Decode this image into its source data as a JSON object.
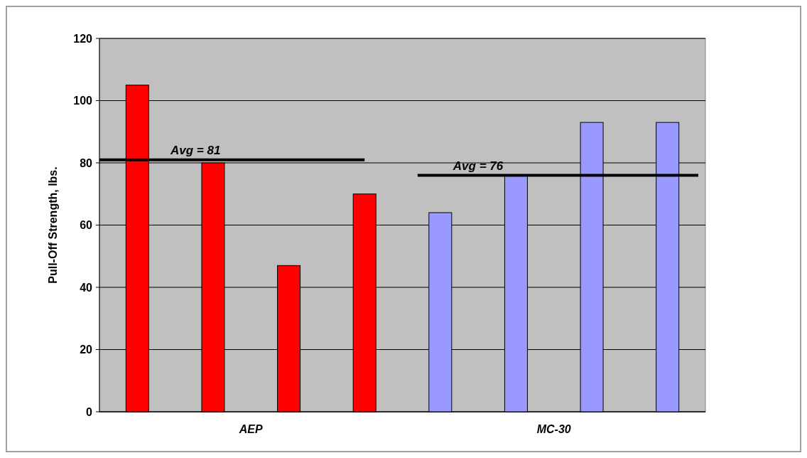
{
  "chart_data": {
    "type": "bar",
    "ylabel": "Pull-Off Strength, lbs.",
    "categories": [
      "AEP",
      "MC-30"
    ],
    "series": [
      {
        "colors": [
          "#ff0000",
          "#9999ff"
        ],
        "values": [
          105,
          64
        ]
      },
      {
        "colors": [
          "#ff0000",
          "#9999ff"
        ],
        "values": [
          80,
          76
        ]
      },
      {
        "colors": [
          "#ff0000",
          "#9999ff"
        ],
        "values": [
          47,
          93
        ]
      },
      {
        "colors": [
          "#ff0000",
          "#9999ff"
        ],
        "values": [
          70,
          93
        ]
      }
    ],
    "ylim": [
      0,
      120
    ],
    "yticks": [
      0,
      20,
      40,
      60,
      80,
      100,
      120
    ],
    "grid": "y",
    "ref_lines": [
      {
        "axis": "y",
        "value": 81,
        "label": "Avg = 81",
        "color": "#000000"
      },
      {
        "axis": "y",
        "value": 76,
        "label": "Avg = 76",
        "color": "#000000"
      }
    ]
  }
}
